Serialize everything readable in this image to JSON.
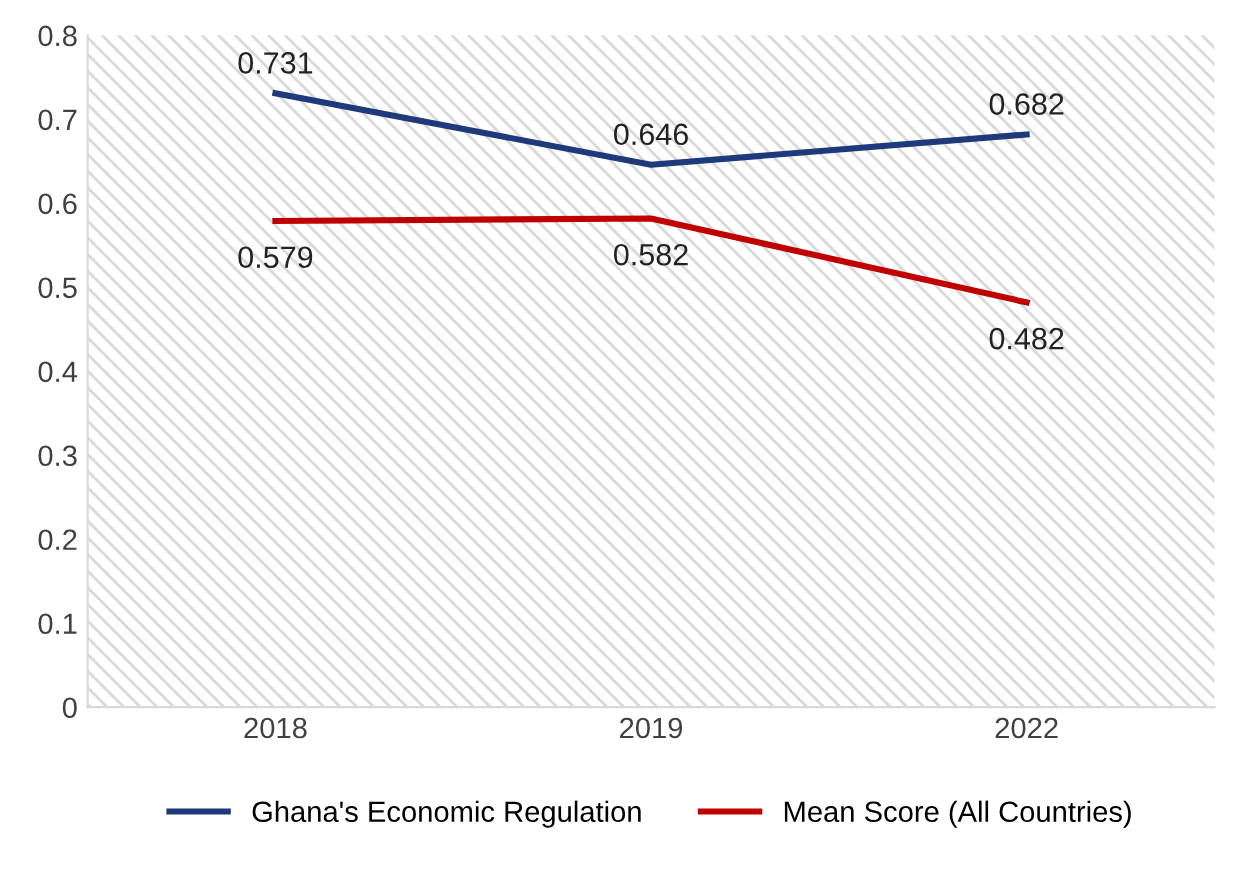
{
  "chart_data": {
    "type": "line",
    "categories": [
      "2018",
      "2019",
      "2022"
    ],
    "series": [
      {
        "name": "Ghana's Economic Regulation",
        "color": "#1f3a7a",
        "values": [
          0.731,
          0.646,
          0.682
        ]
      },
      {
        "name": "Mean Score (All Countries)",
        "color": "#c00000",
        "values": [
          0.579,
          0.582,
          0.482
        ]
      }
    ],
    "ylim": [
      0,
      0.8
    ],
    "yticks": [
      0,
      0.1,
      0.2,
      0.3,
      0.4,
      0.5,
      0.6,
      0.7,
      0.8
    ],
    "data_labels": true,
    "legend": "bottom",
    "marker": "none",
    "line_style": "solid",
    "grid": false
  }
}
